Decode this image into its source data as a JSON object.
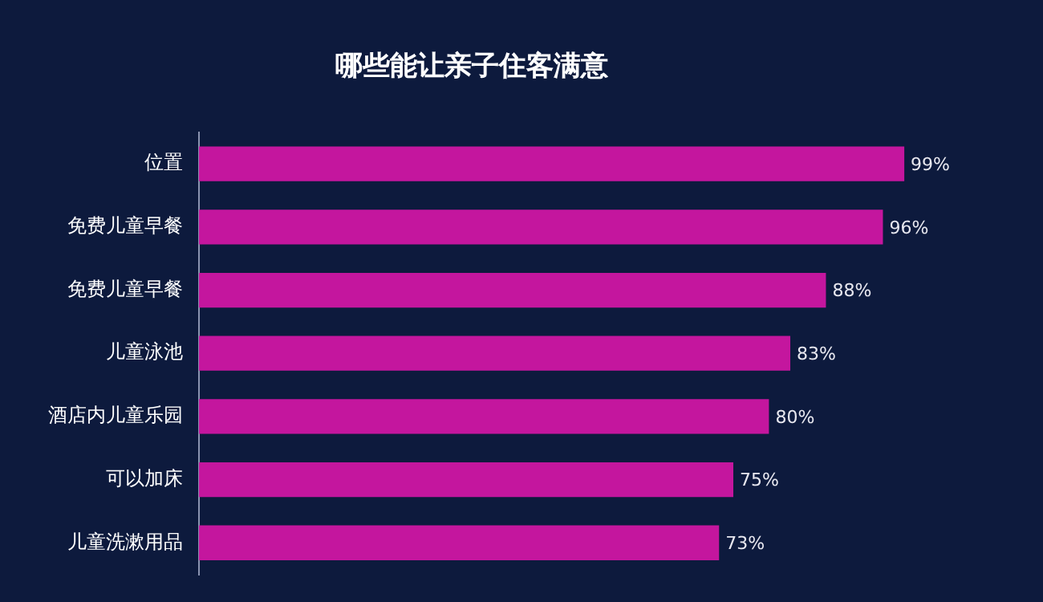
{
  "chart_data": {
    "type": "bar",
    "orientation": "horizontal",
    "title": "哪些能让亲子住客满意",
    "categories": [
      "位置",
      "免费儿童早餐",
      "免费儿童早餐",
      "儿童泳池",
      "酒店内儿童乐园",
      "可以加床",
      "儿童洗漱用品"
    ],
    "values": [
      99,
      96,
      88,
      83,
      80,
      75,
      73
    ],
    "value_labels": [
      "99%",
      "96%",
      "88%",
      "83%",
      "80%",
      "75%",
      "73%"
    ],
    "color": "#c4169e",
    "tick_labels": "y",
    "grid": false,
    "legend": false
  }
}
